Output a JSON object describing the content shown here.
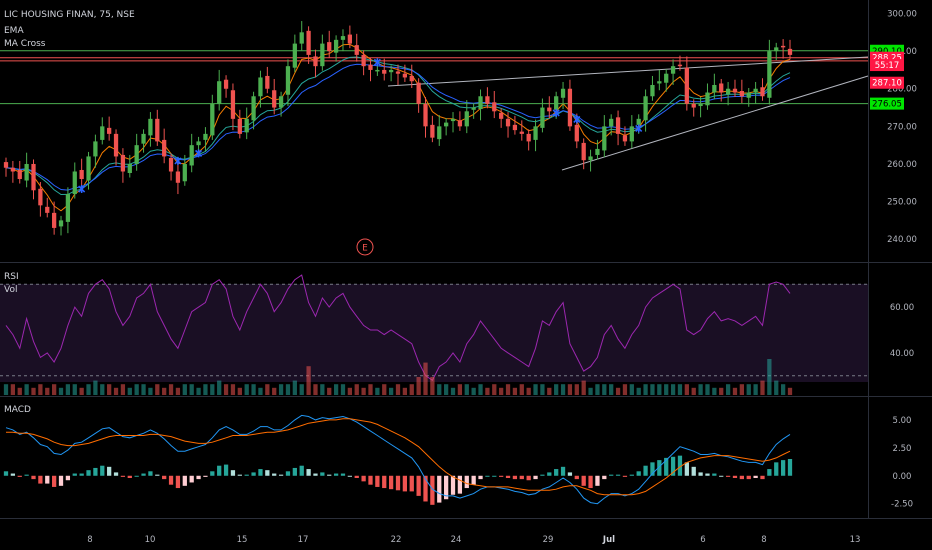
{
  "header": {
    "symbol_line": "LIC HOUSING FINAN, 75, NSE",
    "indicator_1": "EMA",
    "indicator_2": "MA Cross"
  },
  "colors": {
    "background": "#000000",
    "up": "#4caf50",
    "down": "#ef5350",
    "ema_fast": "#f57c00",
    "ema_slow": "#26a69a",
    "ema_slow2": "#2962ff",
    "rsi": "#9c27b0",
    "macd": "#2196f3",
    "signal": "#ff6d00",
    "hist_pos": "#26a69a",
    "hist_neg": "#ef5350",
    "hist_pos_light": "#b2dfdb",
    "hist_neg_light": "#ffcdd2",
    "green_line": "#4caf50",
    "red_line": "#ef5350",
    "trend_line": "#b2b5be",
    "cross_marker": "#2962ff"
  },
  "chart_data": [
    {
      "type": "candlestick",
      "title": "LIC HOUSING FINAN, 75, NSE",
      "y_ticks": [
        "300.00",
        "290.00",
        "280.00",
        "270.00",
        "260.00",
        "250.00",
        "240.00"
      ],
      "ylim": [
        235,
        302
      ],
      "x_ticks": [
        "8",
        "10",
        "15",
        "17",
        "22",
        "24",
        "29",
        "Jul",
        "6",
        "8",
        "13"
      ],
      "price_tags": [
        {
          "label": "290.10",
          "value": 290.1,
          "style": "green"
        },
        {
          "label": "288.25",
          "value": 288.25,
          "style": "red"
        },
        {
          "label": "55:17",
          "value": 286.3,
          "style": "red"
        },
        {
          "label": "287.10",
          "value": 281.6,
          "style": "red"
        },
        {
          "label": "276.05",
          "value": 276.05,
          "style": "green"
        }
      ],
      "horizontal_levels": [
        {
          "value": 290.1,
          "color": "green"
        },
        {
          "value": 288.25,
          "color": "red"
        },
        {
          "value": 287.4,
          "color": "red"
        },
        {
          "value": 276.05,
          "color": "green"
        }
      ],
      "earnings_marker": "E",
      "closes": [
        259,
        258,
        256,
        260,
        253,
        249,
        247,
        243,
        245,
        252,
        258,
        256,
        262,
        266,
        270,
        268,
        262,
        258,
        260,
        265,
        268,
        272,
        266,
        262,
        258,
        255,
        260,
        265,
        266,
        268,
        276,
        282,
        280,
        272,
        268,
        272,
        278,
        283,
        280,
        275,
        278,
        286,
        292,
        295,
        289,
        286,
        292,
        290,
        293,
        294,
        292,
        289,
        286,
        285,
        285,
        284,
        285,
        284,
        283,
        282,
        276,
        270,
        267,
        270,
        271,
        272,
        270,
        274,
        275,
        278,
        276,
        274,
        272,
        270,
        269,
        268,
        266,
        270,
        275,
        274,
        278,
        280,
        270,
        266,
        261,
        262,
        264,
        270,
        272,
        268,
        266,
        270,
        272,
        278,
        281,
        282,
        284,
        286,
        286,
        276,
        275,
        276,
        279,
        281,
        279,
        280,
        279,
        278,
        279,
        280,
        278,
        290,
        291,
        291,
        289
      ],
      "series": [
        {
          "name": "EMA"
        },
        {
          "name": "MA Cross"
        }
      ]
    },
    {
      "type": "line",
      "title": "RSI",
      "y_ticks": [
        "60.00",
        "40.00"
      ],
      "ylim": [
        22,
        78
      ],
      "overbought": 70,
      "oversold": 30,
      "values": [
        52,
        48,
        42,
        55,
        45,
        38,
        40,
        36,
        42,
        52,
        60,
        56,
        66,
        70,
        72,
        68,
        58,
        52,
        56,
        64,
        66,
        70,
        58,
        52,
        46,
        42,
        50,
        58,
        60,
        62,
        70,
        72,
        68,
        56,
        50,
        58,
        64,
        70,
        66,
        58,
        62,
        68,
        72,
        74,
        62,
        56,
        64,
        60,
        64,
        66,
        60,
        56,
        52,
        50,
        50,
        48,
        50,
        48,
        46,
        44,
        36,
        30,
        28,
        34,
        36,
        40,
        36,
        44,
        48,
        54,
        50,
        46,
        42,
        40,
        38,
        36,
        34,
        42,
        54,
        52,
        58,
        62,
        44,
        38,
        32,
        34,
        38,
        48,
        52,
        46,
        42,
        48,
        52,
        60,
        64,
        66,
        68,
        70,
        68,
        50,
        48,
        50,
        55,
        58,
        54,
        55,
        54,
        52,
        54,
        56,
        52,
        70,
        71,
        70,
        66
      ]
    },
    {
      "type": "bar",
      "title": "Vol",
      "values": [
        3,
        3,
        2,
        3,
        2,
        3,
        2,
        3,
        2,
        3,
        3,
        2,
        3,
        4,
        3,
        3,
        2,
        3,
        2,
        3,
        3,
        2,
        3,
        2,
        3,
        2,
        3,
        3,
        2,
        3,
        3,
        4,
        3,
        3,
        2,
        3,
        3,
        2,
        3,
        2,
        3,
        3,
        4,
        3,
        8,
        3,
        3,
        2,
        3,
        3,
        2,
        3,
        2,
        3,
        2,
        3,
        2,
        3,
        2,
        3,
        5,
        9,
        5,
        3,
        3,
        2,
        3,
        3,
        2,
        3,
        2,
        3,
        2,
        3,
        2,
        3,
        2,
        3,
        3,
        2,
        3,
        3,
        3,
        3,
        4,
        2,
        3,
        3,
        3,
        2,
        3,
        3,
        2,
        3,
        3,
        3,
        3,
        3,
        3,
        3,
        2,
        3,
        3,
        2,
        2,
        3,
        2,
        3,
        3,
        3,
        4,
        10,
        4,
        3,
        2
      ]
    },
    {
      "type": "bar",
      "title": "MACD",
      "y_ticks": [
        "5.00",
        "2.50",
        "0.00",
        "-2.50"
      ],
      "ylim": [
        -3.6,
        6.6
      ],
      "macd": [
        4.3,
        4.1,
        3.7,
        3.9,
        3.4,
        2.8,
        2.6,
        2.0,
        1.9,
        2.3,
        2.9,
        3.0,
        3.4,
        3.8,
        4.2,
        4.3,
        3.9,
        3.5,
        3.4,
        3.6,
        3.8,
        4.1,
        3.8,
        3.3,
        2.7,
        2.2,
        2.2,
        2.4,
        2.6,
        2.8,
        3.4,
        4.1,
        4.4,
        4.1,
        3.7,
        3.7,
        4.0,
        4.4,
        4.4,
        4.1,
        4.1,
        4.5,
        5.0,
        5.4,
        5.3,
        5.0,
        5.2,
        5.1,
        5.2,
        5.3,
        5.1,
        4.8,
        4.4,
        4.0,
        3.6,
        3.2,
        2.8,
        2.4,
        2.0,
        1.6,
        0.8,
        -0.3,
        -1.2,
        -1.6,
        -1.8,
        -1.8,
        -2.0,
        -1.8,
        -1.6,
        -1.2,
        -1.0,
        -1.0,
        -1.1,
        -1.2,
        -1.4,
        -1.5,
        -1.7,
        -1.6,
        -1.2,
        -1.0,
        -0.6,
        -0.2,
        -0.6,
        -1.2,
        -2.0,
        -2.4,
        -2.5,
        -2.0,
        -1.6,
        -1.6,
        -1.8,
        -1.6,
        -1.2,
        -0.5,
        0.2,
        0.8,
        1.4,
        2.0,
        2.6,
        2.4,
        2.2,
        1.9,
        1.9,
        2.0,
        1.8,
        1.7,
        1.5,
        1.3,
        1.2,
        1.2,
        1.0,
        2.0,
        2.8,
        3.3,
        3.7
      ],
      "signal": [
        3.9,
        3.9,
        3.8,
        3.8,
        3.7,
        3.5,
        3.3,
        3.0,
        2.8,
        2.7,
        2.7,
        2.8,
        2.9,
        3.1,
        3.3,
        3.5,
        3.6,
        3.6,
        3.6,
        3.6,
        3.6,
        3.7,
        3.7,
        3.6,
        3.5,
        3.3,
        3.1,
        3.0,
        2.9,
        2.9,
        3.0,
        3.2,
        3.4,
        3.6,
        3.6,
        3.6,
        3.7,
        3.8,
        3.9,
        3.9,
        4.0,
        4.1,
        4.3,
        4.5,
        4.7,
        4.8,
        4.9,
        5.0,
        5.0,
        5.1,
        5.1,
        5.0,
        4.9,
        4.8,
        4.6,
        4.3,
        4.0,
        3.7,
        3.4,
        3.0,
        2.6,
        2.0,
        1.4,
        0.8,
        0.3,
        -0.1,
        -0.4,
        -0.7,
        -0.8,
        -0.9,
        -1.0,
        -1.0,
        -1.0,
        -1.0,
        -1.1,
        -1.2,
        -1.3,
        -1.3,
        -1.3,
        -1.3,
        -1.2,
        -1.0,
        -0.9,
        -0.9,
        -1.1,
        -1.3,
        -1.6,
        -1.7,
        -1.7,
        -1.7,
        -1.7,
        -1.7,
        -1.6,
        -1.4,
        -1.0,
        -0.6,
        -0.2,
        0.3,
        0.8,
        1.2,
        1.4,
        1.6,
        1.7,
        1.8,
        1.8,
        1.8,
        1.7,
        1.6,
        1.5,
        1.4,
        1.3,
        1.4,
        1.6,
        1.9,
        2.2
      ]
    }
  ]
}
